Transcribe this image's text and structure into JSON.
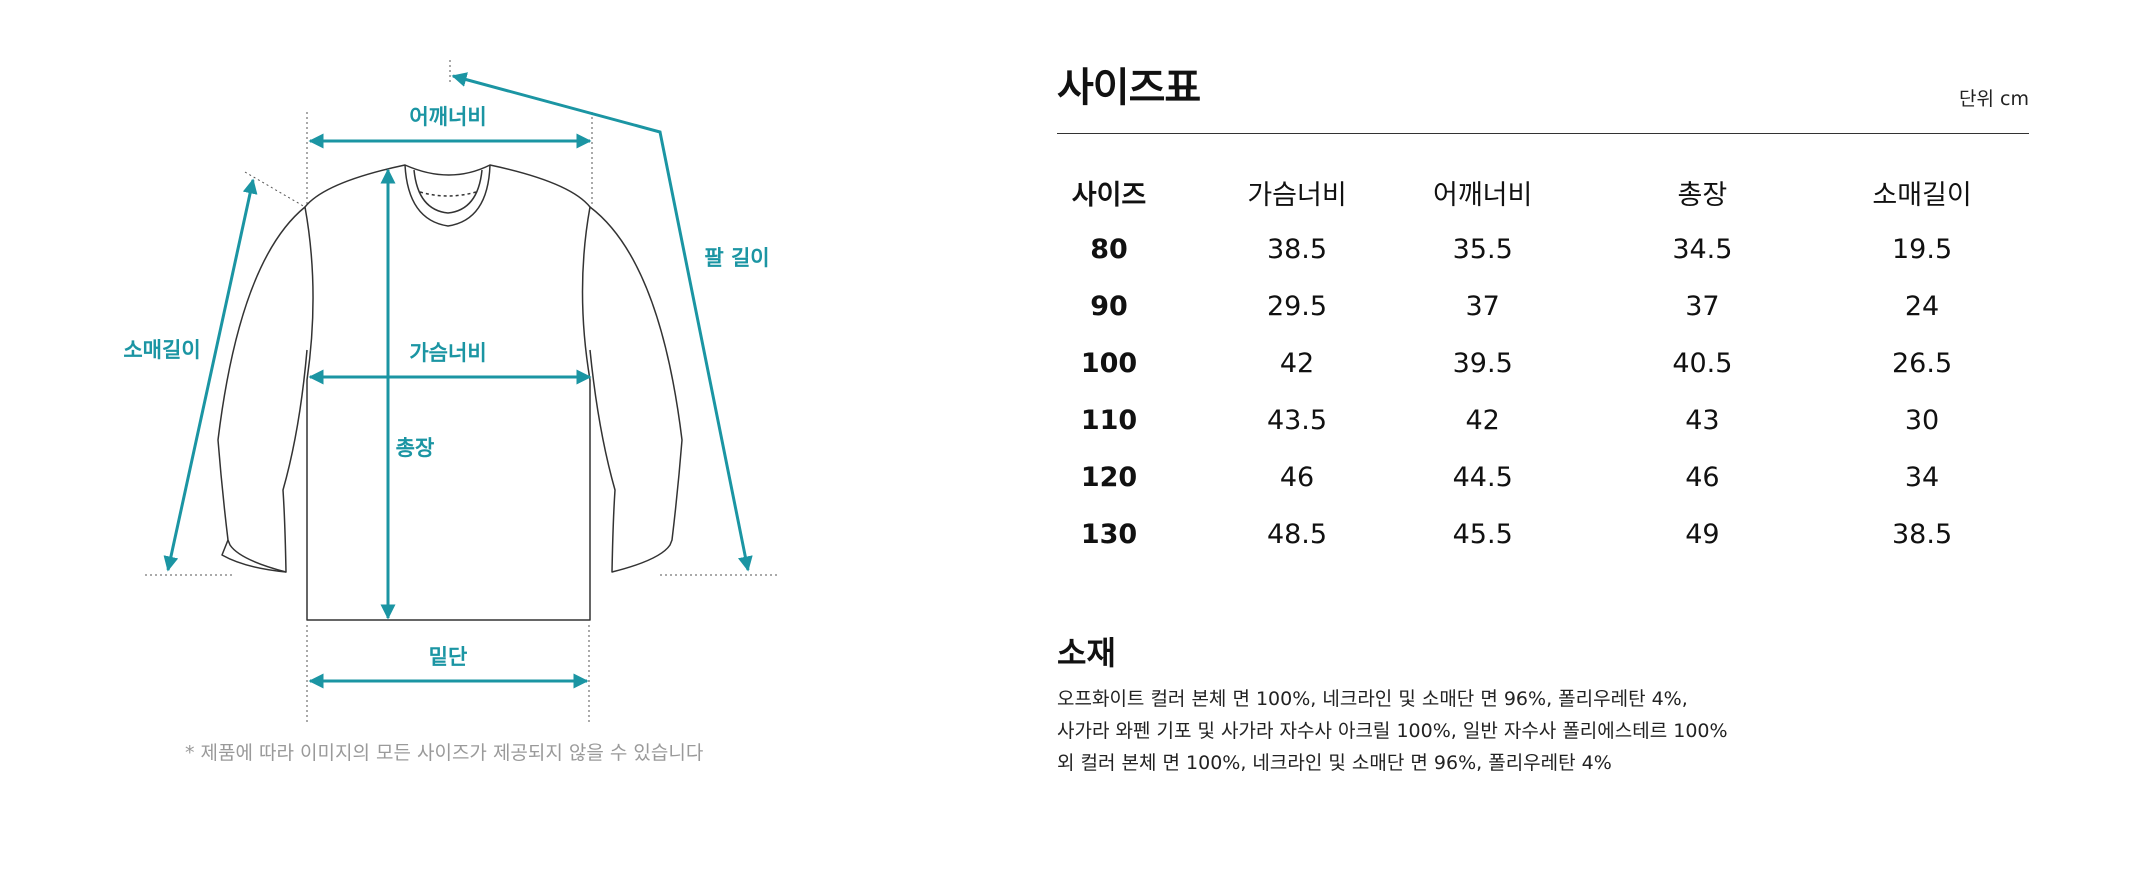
{
  "diagram": {
    "labels": {
      "shoulder": "어깨너비",
      "arm_length": "팔 길이",
      "sleeve_length": "소매길이",
      "chest": "가슴너비",
      "total_length": "총장",
      "hem": "밑단"
    },
    "note": "* 제품에 따라 이미지의 모든 사이즈가 제공되지 않을 수 있습니다",
    "accent_color": "#1b95a3"
  },
  "size_chart": {
    "title": "사이즈표",
    "unit": "단위 cm",
    "headers": [
      "사이즈",
      "가슴너비",
      "어깨너비",
      "총장",
      "소매길이"
    ],
    "rows": [
      [
        "80",
        "38.5",
        "35.5",
        "34.5",
        "19.5"
      ],
      [
        "90",
        "29.5",
        "37",
        "37",
        "24"
      ],
      [
        "100",
        "42",
        "39.5",
        "40.5",
        "26.5"
      ],
      [
        "110",
        "43.5",
        "42",
        "43",
        "30"
      ],
      [
        "120",
        "46",
        "44.5",
        "46",
        "34"
      ],
      [
        "130",
        "48.5",
        "45.5",
        "49",
        "38.5"
      ]
    ]
  },
  "material": {
    "title": "소재",
    "lines": [
      "오프화이트 컬러 본체 면 100%, 네크라인 및 소매단 면 96%, 폴리우레탄 4%,",
      "사가라 와펜 기포 및 사가라 자수사 아크릴 100%, 일반 자수사 폴리에스테르 100%",
      "외 컬러 본체 면 100%, 네크라인 및 소매단 면 96%, 폴리우레탄 4%"
    ]
  }
}
